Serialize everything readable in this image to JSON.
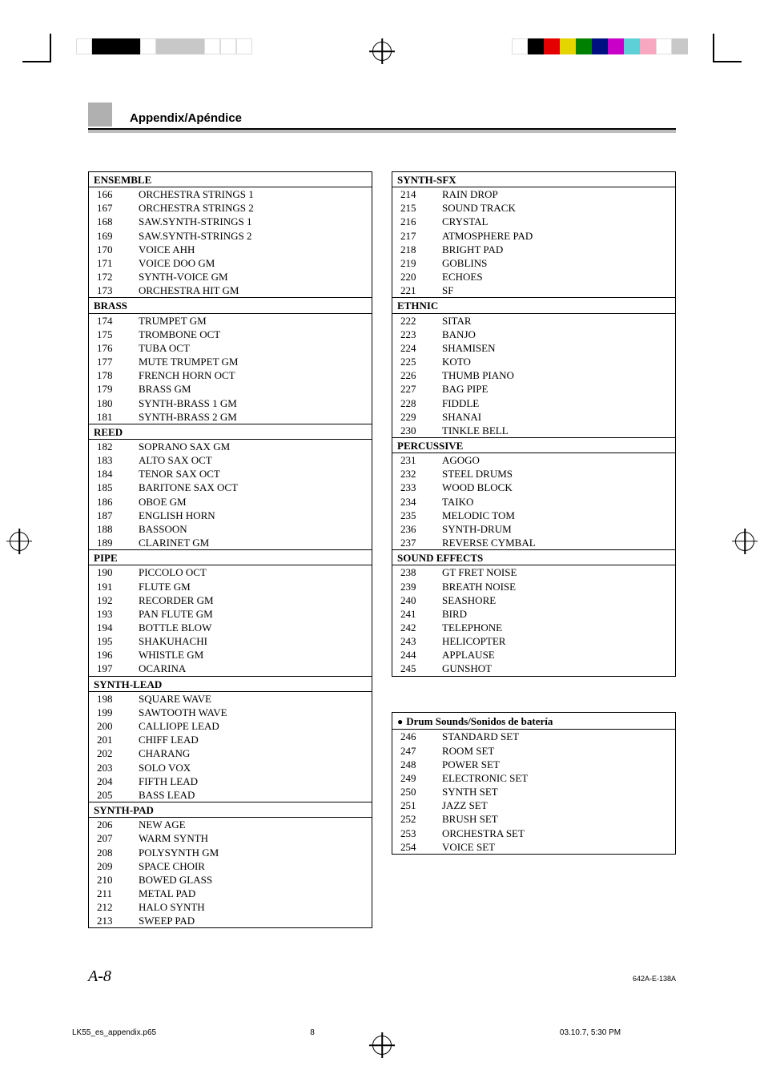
{
  "header": {
    "title": "Appendix/Apéndice"
  },
  "crop_colors_left": [
    "#ffffff",
    "#000000",
    "#000000",
    "#000000",
    "#ffffff",
    "#c8c8c8",
    "#c8c8c8",
    "#c8c8c8",
    "#ffffff",
    "#ffffff",
    "#ffffff"
  ],
  "crop_colors_right": [
    "#ffffff",
    "#000000",
    "#e40000",
    "#e4d400",
    "#008000",
    "#001080",
    "#c800c8",
    "#5dd0d7",
    "#f7a8c0",
    "#ffffff",
    "#c8c8c8"
  ],
  "left_sections": [
    {
      "title": "ENSEMBLE",
      "rows": [
        {
          "n": "166",
          "t": "ORCHESTRA STRINGS 1"
        },
        {
          "n": "167",
          "t": "ORCHESTRA STRINGS 2"
        },
        {
          "n": "168",
          "t": "SAW.SYNTH-STRINGS 1"
        },
        {
          "n": "169",
          "t": "SAW.SYNTH-STRINGS 2"
        },
        {
          "n": "170",
          "t": "VOICE AHH"
        },
        {
          "n": "171",
          "t": "VOICE DOO GM"
        },
        {
          "n": "172",
          "t": "SYNTH-VOICE GM"
        },
        {
          "n": "173",
          "t": "ORCHESTRA HIT GM"
        }
      ]
    },
    {
      "title": "BRASS",
      "rows": [
        {
          "n": "174",
          "t": "TRUMPET GM"
        },
        {
          "n": "175",
          "t": "TROMBONE OCT"
        },
        {
          "n": "176",
          "t": "TUBA OCT"
        },
        {
          "n": "177",
          "t": "MUTE TRUMPET GM"
        },
        {
          "n": "178",
          "t": "FRENCH HORN OCT"
        },
        {
          "n": "179",
          "t": "BRASS GM"
        },
        {
          "n": "180",
          "t": "SYNTH-BRASS 1 GM"
        },
        {
          "n": "181",
          "t": "SYNTH-BRASS 2 GM"
        }
      ]
    },
    {
      "title": "REED",
      "rows": [
        {
          "n": "182",
          "t": "SOPRANO SAX GM"
        },
        {
          "n": "183",
          "t": "ALTO SAX OCT"
        },
        {
          "n": "184",
          "t": "TENOR SAX OCT"
        },
        {
          "n": "185",
          "t": "BARITONE SAX OCT"
        },
        {
          "n": "186",
          "t": "OBOE GM"
        },
        {
          "n": "187",
          "t": "ENGLISH HORN"
        },
        {
          "n": "188",
          "t": "BASSOON"
        },
        {
          "n": "189",
          "t": "CLARINET GM"
        }
      ]
    },
    {
      "title": "PIPE",
      "rows": [
        {
          "n": "190",
          "t": "PICCOLO OCT"
        },
        {
          "n": "191",
          "t": "FLUTE GM"
        },
        {
          "n": "192",
          "t": "RECORDER GM"
        },
        {
          "n": "193",
          "t": "PAN FLUTE GM"
        },
        {
          "n": "194",
          "t": "BOTTLE BLOW"
        },
        {
          "n": "195",
          "t": "SHAKUHACHI"
        },
        {
          "n": "196",
          "t": "WHISTLE GM"
        },
        {
          "n": "197",
          "t": "OCARINA"
        }
      ]
    },
    {
      "title": "SYNTH-LEAD",
      "rows": [
        {
          "n": "198",
          "t": "SQUARE WAVE"
        },
        {
          "n": "199",
          "t": "SAWTOOTH WAVE"
        },
        {
          "n": "200",
          "t": "CALLIOPE LEAD"
        },
        {
          "n": "201",
          "t": "CHIFF LEAD"
        },
        {
          "n": "202",
          "t": "CHARANG"
        },
        {
          "n": "203",
          "t": "SOLO VOX"
        },
        {
          "n": "204",
          "t": "FIFTH LEAD"
        },
        {
          "n": "205",
          "t": "BASS LEAD"
        }
      ]
    },
    {
      "title": "SYNTH-PAD",
      "rows": [
        {
          "n": "206",
          "t": "NEW AGE"
        },
        {
          "n": "207",
          "t": "WARM SYNTH"
        },
        {
          "n": "208",
          "t": "POLYSYNTH GM"
        },
        {
          "n": "209",
          "t": "SPACE CHOIR"
        },
        {
          "n": "210",
          "t": "BOWED GLASS"
        },
        {
          "n": "211",
          "t": "METAL PAD"
        },
        {
          "n": "212",
          "t": "HALO SYNTH"
        },
        {
          "n": "213",
          "t": "SWEEP PAD"
        }
      ]
    }
  ],
  "right_sections": [
    {
      "title": "SYNTH-SFX",
      "rows": [
        {
          "n": "214",
          "t": "RAIN DROP"
        },
        {
          "n": "215",
          "t": "SOUND TRACK"
        },
        {
          "n": "216",
          "t": "CRYSTAL"
        },
        {
          "n": "217",
          "t": "ATMOSPHERE PAD"
        },
        {
          "n": "218",
          "t": "BRIGHT PAD"
        },
        {
          "n": "219",
          "t": "GOBLINS"
        },
        {
          "n": "220",
          "t": "ECHOES"
        },
        {
          "n": "221",
          "t": "SF"
        }
      ]
    },
    {
      "title": "ETHNIC",
      "rows": [
        {
          "n": "222",
          "t": "SITAR"
        },
        {
          "n": "223",
          "t": "BANJO"
        },
        {
          "n": "224",
          "t": "SHAMISEN"
        },
        {
          "n": "225",
          "t": "KOTO"
        },
        {
          "n": "226",
          "t": "THUMB PIANO"
        },
        {
          "n": "227",
          "t": "BAG PIPE"
        },
        {
          "n": "228",
          "t": "FIDDLE"
        },
        {
          "n": "229",
          "t": "SHANAI"
        },
        {
          "n": "230",
          "t": "TINKLE BELL"
        }
      ]
    },
    {
      "title": "PERCUSSIVE",
      "rows": [
        {
          "n": "231",
          "t": "AGOGO"
        },
        {
          "n": "232",
          "t": "STEEL DRUMS"
        },
        {
          "n": "233",
          "t": "WOOD BLOCK"
        },
        {
          "n": "234",
          "t": "TAIKO"
        },
        {
          "n": "235",
          "t": "MELODIC TOM"
        },
        {
          "n": "236",
          "t": "SYNTH-DRUM"
        },
        {
          "n": "237",
          "t": "REVERSE CYMBAL"
        }
      ]
    },
    {
      "title": "SOUND EFFECTS",
      "rows": [
        {
          "n": "238",
          "t": "GT FRET NOISE"
        },
        {
          "n": "239",
          "t": "BREATH NOISE"
        },
        {
          "n": "240",
          "t": "SEASHORE"
        },
        {
          "n": "241",
          "t": "BIRD"
        },
        {
          "n": "242",
          "t": "TELEPHONE"
        },
        {
          "n": "243",
          "t": "HELICOPTER"
        },
        {
          "n": "244",
          "t": "APPLAUSE"
        },
        {
          "n": "245",
          "t": "GUNSHOT"
        }
      ]
    }
  ],
  "drum_box": {
    "title": "Drum Sounds/Sonidos de batería",
    "rows": [
      {
        "n": "246",
        "t": "STANDARD SET"
      },
      {
        "n": "247",
        "t": "ROOM SET"
      },
      {
        "n": "248",
        "t": "POWER SET"
      },
      {
        "n": "249",
        "t": "ELECTRONIC SET"
      },
      {
        "n": "250",
        "t": "SYNTH SET"
      },
      {
        "n": "251",
        "t": "JAZZ SET"
      },
      {
        "n": "252",
        "t": "BRUSH SET"
      },
      {
        "n": "253",
        "t": "ORCHESTRA SET"
      },
      {
        "n": "254",
        "t": "VOICE SET"
      }
    ]
  },
  "footer": {
    "page": "A-8",
    "code": "642A-E-138A",
    "meta_file": "LK55_es_appendix.p65",
    "meta_page": "8",
    "meta_date": "03.10.7, 5:30 PM"
  }
}
